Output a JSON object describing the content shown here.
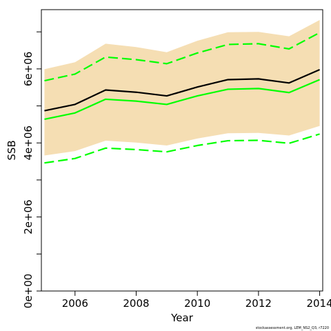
{
  "chart_data": {
    "type": "line",
    "title": "",
    "xlabel": "Year",
    "ylabel": "SSB",
    "xlim": [
      2004.9,
      2014.1
    ],
    "ylim": [
      0,
      7600000
    ],
    "x": [
      2005,
      2006,
      2007,
      2008,
      2009,
      2010,
      2011,
      2012,
      2013,
      2014
    ],
    "x_ticks": [
      2006,
      2008,
      2010,
      2012,
      2014
    ],
    "x_tick_labels": [
      "2006",
      "2008",
      "2010",
      "2012",
      "2014"
    ],
    "y_ticks": [
      0,
      2000000,
      4000000,
      6000000
    ],
    "y_tick_labels": [
      "0e+00",
      "2e+06",
      "4e+06",
      "6e+06"
    ],
    "y_minor_ticks": [
      1000000,
      3000000,
      5000000,
      7000000
    ],
    "band": {
      "color": "#f5deb3",
      "lower": [
        3660000,
        3780000,
        4060000,
        4010000,
        3930000,
        4120000,
        4260000,
        4270000,
        4200000,
        4460000
      ],
      "upper": [
        5990000,
        6180000,
        6680000,
        6590000,
        6450000,
        6760000,
        6990000,
        7000000,
        6880000,
        7320000
      ]
    },
    "series": [
      {
        "color": "#000000",
        "style": "solid",
        "values": [
          4870000,
          5040000,
          5430000,
          5370000,
          5270000,
          5510000,
          5710000,
          5730000,
          5620000,
          5980000
        ]
      },
      {
        "color": "#00ff00",
        "style": "solid",
        "values": [
          4640000,
          4810000,
          5180000,
          5130000,
          5040000,
          5270000,
          5450000,
          5470000,
          5360000,
          5710000
        ]
      },
      {
        "color": "#00ff00",
        "style": "dashed",
        "values": [
          5680000,
          5860000,
          6320000,
          6250000,
          6140000,
          6430000,
          6660000,
          6680000,
          6540000,
          6980000
        ]
      },
      {
        "color": "#00ff00",
        "style": "dashed",
        "values": [
          3460000,
          3580000,
          3860000,
          3820000,
          3760000,
          3930000,
          4060000,
          4070000,
          3990000,
          4240000
        ]
      }
    ],
    "grid": false,
    "legend": "none"
  },
  "credit": "stockassessment.org, LEM_NS2_Q3, r7220"
}
